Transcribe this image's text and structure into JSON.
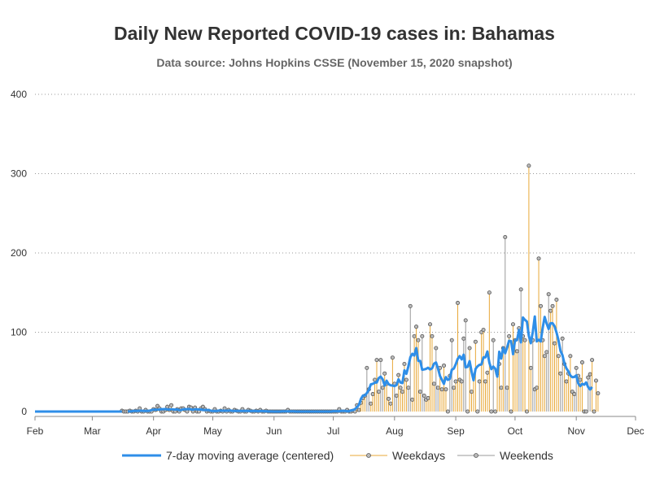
{
  "title": "Daily New Reported COVID-19 cases in: Bahamas",
  "subtitle": "Data source: Johns Hopkins CSSE (November 15, 2020 snapshot)",
  "colors": {
    "moving_average": "#2e8ee8",
    "weekday": "#e8a838",
    "weekend": "#999999",
    "marker_fill": "#bbbbbb",
    "grid": "#999999",
    "axis": "#888888"
  },
  "legend": [
    {
      "label": "7-day moving average (centered)",
      "kind": "line",
      "color": "#2e8ee8"
    },
    {
      "label": "Weekdays",
      "kind": "needle",
      "color": "#e8a838"
    },
    {
      "label": "Weekends",
      "kind": "needle",
      "color": "#999999"
    }
  ],
  "chart_data": {
    "type": "line",
    "x_type": "date",
    "xlim": [
      "2020-02-01",
      "2020-12-01"
    ],
    "ylim": [
      0,
      400
    ],
    "y_ticks": [
      0,
      100,
      200,
      300,
      400
    ],
    "x_tick_labels": [
      "Feb",
      "Mar",
      "Apr",
      "May",
      "Jun",
      "Jul",
      "Aug",
      "Sep",
      "Oct",
      "Nov",
      "Dec"
    ],
    "x_tick_dates": [
      "2020-02-01",
      "2020-03-01",
      "2020-04-01",
      "2020-05-01",
      "2020-06-01",
      "2020-07-01",
      "2020-08-01",
      "2020-09-01",
      "2020-10-01",
      "2020-11-01",
      "2020-12-01"
    ],
    "grid": "horizontal dotted",
    "legend_position": "bottom",
    "daily_start": "2020-03-16",
    "daily_cases": [
      1,
      0,
      0,
      0,
      1,
      0,
      0,
      1,
      0,
      4,
      0,
      0,
      2,
      0,
      0,
      0,
      3,
      2,
      7,
      4,
      0,
      0,
      2,
      6,
      2,
      8,
      0,
      0,
      3,
      0,
      4,
      4,
      2,
      0,
      6,
      5,
      0,
      5,
      0,
      0,
      4,
      6,
      3,
      0,
      1,
      0,
      0,
      3,
      0,
      0,
      1,
      0,
      4,
      0,
      2,
      0,
      0,
      2,
      1,
      0,
      0,
      3,
      0,
      0,
      2,
      1,
      0,
      0,
      1,
      0,
      2,
      0,
      0,
      1,
      0,
      0,
      0,
      0,
      0,
      0,
      0,
      0,
      0,
      0,
      2,
      0,
      0,
      0,
      0,
      0,
      0,
      0,
      0,
      0,
      0,
      0,
      0,
      0,
      0,
      0,
      0,
      0,
      0,
      0,
      0,
      0,
      0,
      0,
      0,
      0,
      3,
      0,
      0,
      0,
      2,
      0,
      0,
      1,
      0,
      8,
      2,
      11,
      17,
      20,
      55,
      28,
      10,
      22,
      40,
      65,
      25,
      65,
      30,
      48,
      35,
      16,
      10,
      68,
      35,
      20,
      46,
      30,
      25,
      60,
      40,
      30,
      133,
      15,
      95,
      107,
      90,
      25,
      95,
      20,
      15,
      17,
      110,
      95,
      35,
      80,
      30,
      55,
      28,
      58,
      28,
      0,
      45,
      90,
      30,
      38,
      137,
      40,
      38,
      92,
      115,
      0,
      80,
      25,
      45,
      88,
      0,
      38,
      100,
      103,
      38,
      49,
      150,
      0,
      90,
      0,
      48,
      60,
      30,
      80,
      220,
      30,
      95,
      0,
      110,
      90,
      76,
      105,
      154,
      95,
      90,
      0,
      310,
      55,
      90,
      28,
      30,
      193,
      133,
      90,
      70,
      75,
      148,
      127,
      133,
      86,
      141,
      70,
      48,
      92,
      60,
      38,
      48,
      70,
      25,
      22,
      55,
      45,
      40,
      62,
      0,
      0,
      43,
      47,
      65,
      0,
      39,
      23
    ]
  }
}
